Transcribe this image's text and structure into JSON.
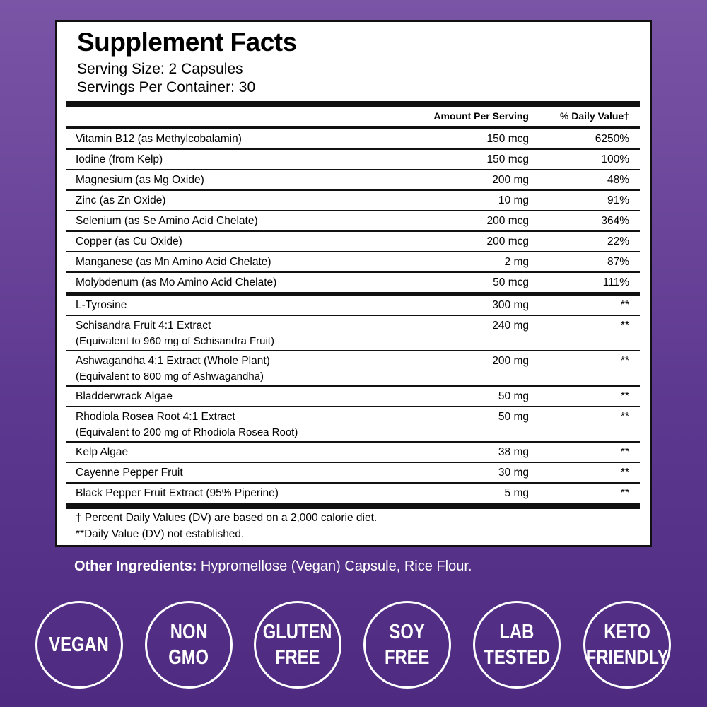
{
  "header": {
    "title": "Supplement Facts",
    "serving_size": "Serving Size: 2 Capsules",
    "servings_per_container": "Servings Per Container: 30"
  },
  "table": {
    "columns": [
      "Amount Per Serving",
      "% Daily Value†"
    ],
    "groups": [
      [
        {
          "name": "Vitamin B12 (as Methylcobalamin)",
          "amount": "150 mcg",
          "dv": "6250%"
        },
        {
          "name": "Iodine (from Kelp)",
          "amount": "150 mcg",
          "dv": "100%"
        },
        {
          "name": "Magnesium (as Mg Oxide)",
          "amount": "200 mg",
          "dv": "48%"
        },
        {
          "name": "Zinc (as Zn Oxide)",
          "amount": "10 mg",
          "dv": "91%"
        },
        {
          "name": "Selenium (as Se Amino Acid Chelate)",
          "amount": "200 mcg",
          "dv": "364%"
        },
        {
          "name": "Copper (as Cu Oxide)",
          "amount": "200 mcg",
          "dv": "22%"
        },
        {
          "name": "Manganese (as Mn Amino Acid Chelate)",
          "amount": "2 mg",
          "dv": "87%"
        },
        {
          "name": "Molybdenum (as Mo Amino Acid Chelate)",
          "amount": "50 mcg",
          "dv": "111%"
        }
      ],
      [
        {
          "name": "L-Tyrosine",
          "amount": "300 mg",
          "dv": "**"
        },
        {
          "name": "Schisandra Fruit 4:1 Extract",
          "note": "(Equivalent to 960 mg of Schisandra Fruit)",
          "amount": "240 mg",
          "dv": "**"
        },
        {
          "name": "Ashwagandha 4:1 Extract (Whole Plant)",
          "note": "(Equivalent to 800 mg of Ashwagandha)",
          "amount": "200 mg",
          "dv": "**"
        },
        {
          "name": "Bladderwrack Algae",
          "amount": "50 mg",
          "dv": "**"
        },
        {
          "name": "Rhodiola Rosea Root 4:1 Extract",
          "note": "(Equivalent to 200 mg of Rhodiola Rosea Root)",
          "amount": "50 mg",
          "dv": "**"
        },
        {
          "name": "Kelp Algae",
          "amount": "38 mg",
          "dv": "**"
        },
        {
          "name": "Cayenne Pepper Fruit",
          "amount": "30 mg",
          "dv": "**"
        },
        {
          "name": "Black Pepper Fruit Extract (95% Piperine)",
          "amount": "5 mg",
          "dv": "**"
        }
      ]
    ]
  },
  "footnotes": [
    "† Percent Daily Values (DV) are based on a 2,000 calorie diet.",
    "**Daily Value (DV) not established."
  ],
  "other_ingredients": {
    "label": "Other Ingredients:",
    "text": "Hypromellose (Vegan) Capsule, Rice Flour."
  },
  "badges": [
    [
      "VEGAN"
    ],
    [
      "NON",
      "GMO"
    ],
    [
      "GLUTEN",
      "FREE"
    ],
    [
      "SOY",
      "FREE"
    ],
    [
      "LAB",
      "TESTED"
    ],
    [
      "KETO",
      "FRIENDLY"
    ]
  ]
}
